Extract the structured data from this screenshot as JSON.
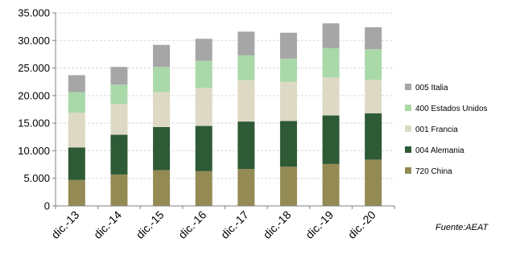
{
  "chart_data": {
    "type": "bar",
    "stacked": true,
    "categories": [
      "dic.-13",
      "dic.-14",
      "dic.-15",
      "dic.-16",
      "dic.-17",
      "dic.-18",
      "dic.-19",
      "dic.-20"
    ],
    "series": [
      {
        "name": "720 China",
        "color": "#948a54",
        "values": [
          4700,
          5700,
          6500,
          6300,
          6700,
          7100,
          7600,
          8400
        ]
      },
      {
        "name": "004 Alemania",
        "color": "#2e5a36",
        "values": [
          5900,
          7200,
          7800,
          8200,
          8600,
          8300,
          8800,
          8400
        ]
      },
      {
        "name": "001 Francia",
        "color": "#ddd9c4",
        "values": [
          6300,
          5600,
          6300,
          6900,
          7500,
          7100,
          6900,
          6100
        ]
      },
      {
        "name": "400 Estados Unidos",
        "color": "#a9d8a9",
        "values": [
          3700,
          3500,
          4600,
          4900,
          4500,
          4200,
          5300,
          5500
        ]
      },
      {
        "name": "005 Italia",
        "color": "#a6a6a6",
        "values": [
          3100,
          3200,
          4000,
          4000,
          4300,
          4700,
          4500,
          4000
        ]
      }
    ],
    "ylim": [
      0,
      35000
    ],
    "yticks": [
      0,
      5000,
      10000,
      15000,
      20000,
      25000,
      30000,
      35000
    ],
    "ytick_labels": [
      "0",
      "5.000",
      "10.000",
      "15.000",
      "20.000",
      "25.000",
      "30.000",
      "35.000"
    ],
    "grid": true,
    "legend": "right",
    "title": "",
    "xlabel": "",
    "ylabel": ""
  },
  "source": "Fuente:AEAT"
}
